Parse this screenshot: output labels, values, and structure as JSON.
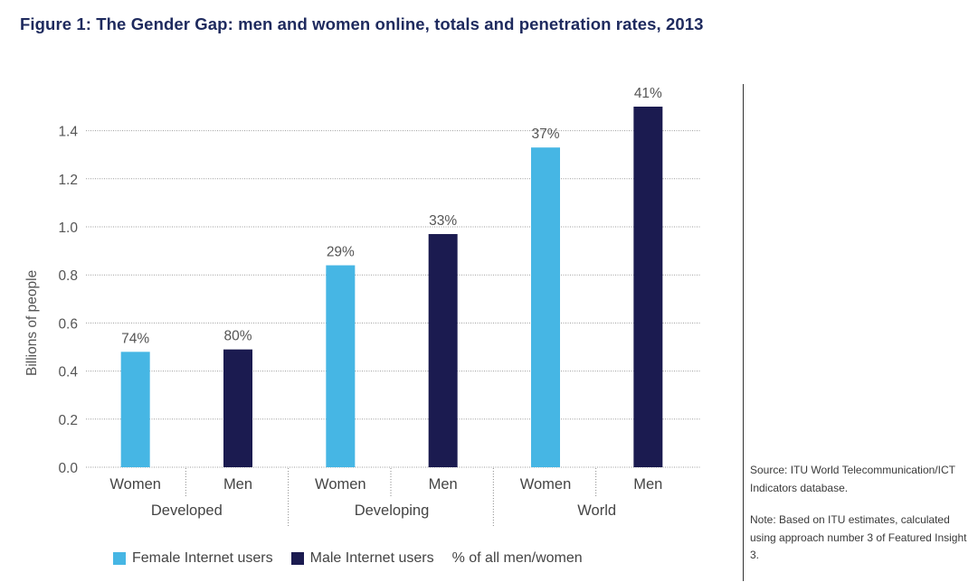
{
  "title": "Figure 1: The Gender Gap: men and women online, totals and penetration rates, 2013",
  "colors": {
    "female": "#46b6e4",
    "male": "#1b1b50",
    "title": "#1e2a5e"
  },
  "chart_data": {
    "type": "bar",
    "title": "Figure 1: The Gender Gap: men and women online, totals and penetration rates, 2013",
    "ylabel": "Billions of people",
    "ylim": [
      0,
      1.5
    ],
    "yticks": [
      "0.0",
      "0.2",
      "0.4",
      "0.6",
      "0.8",
      "1.0",
      "1.2",
      "1.4"
    ],
    "groups": [
      "Developed",
      "Developing",
      "World"
    ],
    "bars": [
      {
        "group": "Developed",
        "category": "Women",
        "series": "Female Internet users",
        "value": 0.48,
        "label": "74%"
      },
      {
        "group": "Developed",
        "category": "Men",
        "series": "Male Internet users",
        "value": 0.49,
        "label": "80%"
      },
      {
        "group": "Developing",
        "category": "Women",
        "series": "Female Internet users",
        "value": 0.84,
        "label": "29%"
      },
      {
        "group": "Developing",
        "category": "Men",
        "series": "Male Internet users",
        "value": 0.97,
        "label": "33%"
      },
      {
        "group": "World",
        "category": "Women",
        "series": "Female Internet users",
        "value": 1.33,
        "label": "37%"
      },
      {
        "group": "World",
        "category": "Men",
        "series": "Male Internet users",
        "value": 1.5,
        "label": "41%"
      }
    ],
    "series": [
      {
        "name": "Female Internet users",
        "color": "#46b6e4"
      },
      {
        "name": "Male Internet users",
        "color": "#1b1b50"
      }
    ],
    "grid": true,
    "legend_position": "bottom"
  },
  "legend": {
    "female": "Female Internet users",
    "male": "Male Internet users",
    "pct": "% of all men/women"
  },
  "notes": {
    "source": "Source: ITU World Telecommunication/ICT Indicators database.",
    "note": "Note: Based on ITU estimates, calculated using approach number 3 of Featured Insight 3."
  }
}
